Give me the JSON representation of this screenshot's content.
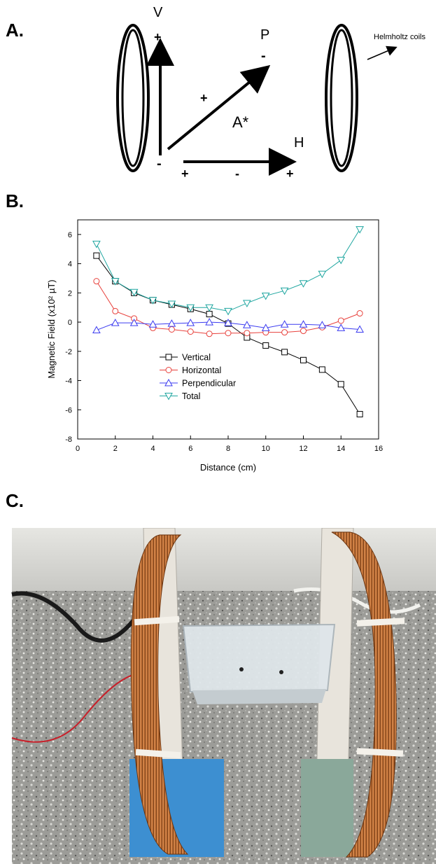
{
  "panel_a": {
    "label": "A.",
    "axis_v": "V",
    "axis_p": "P",
    "axis_h": "H",
    "point": "A*",
    "helmholtz_label": "Helmholtz coils",
    "signs": {
      "v_top": "+",
      "v_bottom": "-",
      "p_tip": "-",
      "p_mid": "+",
      "h_left": "+",
      "h_mid": "-",
      "h_right": "+"
    }
  },
  "panel_b": {
    "label": "B."
  },
  "panel_c": {
    "label": "C."
  },
  "chart_data": {
    "type": "line",
    "xlabel": "Distance (cm)",
    "ylabel": "Magnetic Field (x10² µT)",
    "xlim": [
      0,
      16
    ],
    "ylim": [
      -8,
      7
    ],
    "xticks": [
      "0",
      "2",
      "4",
      "6",
      "8",
      "10",
      "12",
      "14",
      "16"
    ],
    "yticks": [
      "-8",
      "-6",
      "-4",
      "-2",
      "0",
      "2",
      "4",
      "6"
    ],
    "grid": false,
    "legend_position": "bottom-center",
    "x": [
      1,
      2,
      3,
      4,
      5,
      6,
      7,
      8,
      9,
      10,
      11,
      12,
      13,
      14,
      15
    ],
    "series": [
      {
        "name": "Vertical",
        "color": "#000000",
        "marker": "square",
        "values": [
          4.55,
          2.8,
          2.0,
          1.5,
          1.2,
          0.9,
          0.55,
          -0.1,
          -1.05,
          -1.6,
          -2.05,
          -2.6,
          -3.25,
          -4.25,
          -6.3
        ]
      },
      {
        "name": "Horizontal",
        "color": "#e8413c",
        "marker": "circle",
        "values": [
          2.8,
          0.75,
          0.25,
          -0.4,
          -0.5,
          -0.65,
          -0.8,
          -0.75,
          -0.75,
          -0.7,
          -0.7,
          -0.6,
          -0.35,
          0.1,
          0.6
        ]
      },
      {
        "name": "Perpendicular",
        "color": "#3c3cf0",
        "marker": "triangle-up",
        "values": [
          -0.55,
          -0.05,
          -0.05,
          -0.15,
          -0.1,
          -0.05,
          0.0,
          -0.05,
          -0.2,
          -0.4,
          -0.15,
          -0.15,
          -0.2,
          -0.4,
          -0.5
        ]
      },
      {
        "name": "Total",
        "color": "#1fa6a0",
        "marker": "triangle-down",
        "values": [
          5.35,
          2.8,
          2.05,
          1.5,
          1.25,
          1.0,
          1.0,
          0.75,
          1.3,
          1.8,
          2.15,
          2.65,
          3.3,
          4.25,
          6.35
        ]
      }
    ]
  },
  "colors": {
    "copper": "#b86a32",
    "copper_dark": "#7a3f16",
    "stand_blue": "#3d8fd1",
    "floor": "#9a9a96"
  }
}
